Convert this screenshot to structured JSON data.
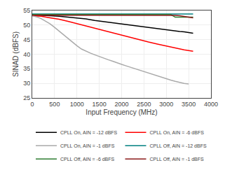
{
  "chart_data": {
    "type": "line",
    "xlabel": "Input Frequency (MHz)",
    "ylabel": "SINAD (dBFS)",
    "xlim": [
      0,
      4000
    ],
    "ylim": [
      25,
      55
    ],
    "xticks": [
      0,
      500,
      1000,
      1500,
      2000,
      2500,
      3000,
      3500,
      4000
    ],
    "yticks": [
      25,
      30,
      35,
      40,
      45,
      50,
      55
    ],
    "grid": true,
    "legend": "lower left",
    "series": [
      {
        "name": "CPLL On, AIN = -12 dBFS",
        "color": "#000000",
        "x": [
          0,
          200,
          400,
          600,
          800,
          1000,
          1200,
          1400,
          1600,
          1800,
          2000,
          2200,
          2400,
          2500,
          2600,
          2800,
          3000,
          3100,
          3200,
          3300,
          3400,
          3500,
          3600
        ],
        "values": [
          53.5,
          53.4,
          53.2,
          53.0,
          52.7,
          52.5,
          52.1,
          51.6,
          51.2,
          50.8,
          50.4,
          50.0,
          49.6,
          49.4,
          49.1,
          48.7,
          48.3,
          48.1,
          47.9,
          47.8,
          47.7,
          47.5,
          47.2
        ]
      },
      {
        "name": "CPLL On, AIN = -6 dBFS",
        "color": "#ff0000",
        "x": [
          0,
          200,
          400,
          600,
          800,
          1000,
          1200,
          1400,
          1600,
          1800,
          2000,
          2200,
          2400,
          2600,
          2800,
          3000,
          3200,
          3400,
          3600
        ],
        "values": [
          53.2,
          53.0,
          52.5,
          52.0,
          51.3,
          50.5,
          49.7,
          49.0,
          48.2,
          47.4,
          46.6,
          45.8,
          45.0,
          44.2,
          43.5,
          42.8,
          42.1,
          41.5,
          41.0
        ]
      },
      {
        "name": "CPLL On, AIN = -1 dBFS",
        "color": "#aaaaaa",
        "x": [
          0,
          100,
          200,
          300,
          400,
          500,
          600,
          700,
          800,
          900,
          1000,
          1100,
          1200,
          1300,
          1400,
          1500,
          1600,
          1700,
          1800,
          1900,
          2000,
          2100,
          2200,
          2300,
          2400,
          2500,
          2600,
          2700,
          2800,
          2900,
          3000,
          3100,
          3200,
          3300,
          3400,
          3500
        ],
        "values": [
          53.2,
          52.8,
          52.2,
          51.4,
          50.4,
          49.2,
          47.9,
          46.6,
          45.3,
          44.1,
          42.9,
          41.8,
          41.0,
          40.4,
          39.8,
          39.2,
          38.7,
          38.1,
          37.6,
          37.0,
          36.5,
          36.0,
          35.5,
          35.0,
          34.5,
          34.0,
          33.5,
          33.0,
          32.5,
          32.0,
          31.6,
          31.1,
          30.7,
          30.3,
          30.0,
          29.8
        ]
      },
      {
        "name": "CPLL Off, AIN = -12 dBFS",
        "color": "#008080",
        "x": [
          0,
          200,
          400,
          600,
          800,
          1000,
          1200,
          1400,
          1600,
          1800,
          2000,
          2200,
          2400,
          2600,
          2800,
          3000,
          3200,
          3400,
          3600
        ],
        "values": [
          53.8,
          53.8,
          53.8,
          53.8,
          53.8,
          53.8,
          53.8,
          53.8,
          53.8,
          53.8,
          53.8,
          53.8,
          53.8,
          53.8,
          53.8,
          53.8,
          53.8,
          53.8,
          53.8
        ]
      },
      {
        "name": "CPLL Off, AIN = -6 dBFS",
        "color": "#2e7d32",
        "x": [
          0,
          200,
          400,
          600,
          800,
          1000,
          1200,
          1400,
          1600,
          1800,
          2000,
          2200,
          2400,
          2600,
          2800,
          3000,
          3100,
          3200,
          3300,
          3400,
          3500,
          3600
        ],
        "values": [
          53.6,
          53.6,
          53.6,
          53.6,
          53.6,
          53.6,
          53.6,
          53.6,
          53.6,
          53.6,
          53.6,
          53.6,
          53.6,
          53.6,
          53.6,
          53.6,
          53.6,
          52.7,
          52.7,
          52.7,
          52.7,
          52.7
        ]
      },
      {
        "name": "CPLL Off, AIN = -1 dBFS",
        "color": "#8b1a1a",
        "x": [
          0,
          200,
          400,
          600,
          800,
          1000,
          1200,
          1400,
          1600,
          1800,
          2000,
          2200,
          2400,
          2600,
          2800,
          3000,
          3200,
          3300,
          3400,
          3500,
          3600
        ],
        "values": [
          53.4,
          53.4,
          53.4,
          53.4,
          53.4,
          53.4,
          53.4,
          53.4,
          53.4,
          53.4,
          53.4,
          53.4,
          53.4,
          53.4,
          53.4,
          53.4,
          53.3,
          53.2,
          53.0,
          52.8,
          52.5
        ]
      }
    ]
  }
}
